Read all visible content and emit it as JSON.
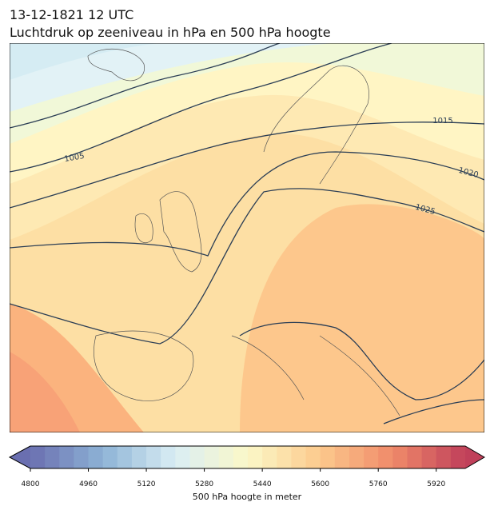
{
  "title": [
    "13-12-1821 12 UTC",
    "Luchtdruk op zeeniveau in hPa en 500 hPa hoogte"
  ],
  "map": {
    "contour_labels": [
      1005,
      1015,
      1020,
      1025
    ]
  },
  "colorbar": {
    "label": "500 hPa hoogte in meter",
    "lim": [
      4800,
      6000
    ],
    "step": 40,
    "ticks": [
      4800,
      4960,
      5120,
      5280,
      5440,
      5600,
      5760,
      5920
    ],
    "colors": [
      "#6a6fb0",
      "#8db3d6",
      "#daeef4",
      "#fbf8c8",
      "#fcc98c",
      "#f08a6a",
      "#c0405a"
    ]
  }
}
